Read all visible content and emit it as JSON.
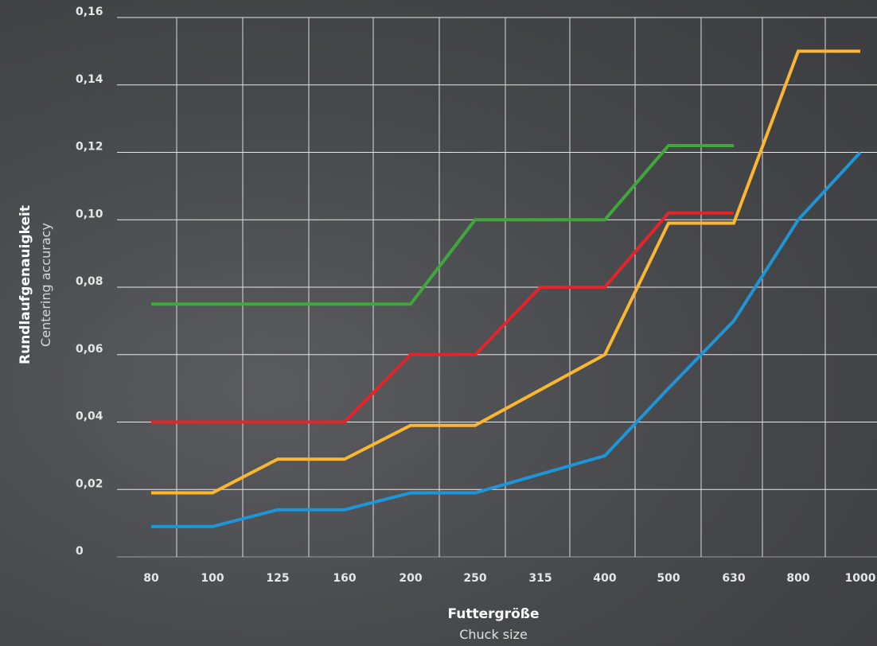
{
  "chart_data": {
    "type": "line",
    "categories": [
      "80",
      "100",
      "125",
      "160",
      "200",
      "250",
      "315",
      "400",
      "500",
      "630",
      "800",
      "1000"
    ],
    "y_tick_labels": [
      "0",
      "0,02",
      "0,04",
      "0,06",
      "0,08",
      "0,10",
      "0,12",
      "0,14",
      "0,16"
    ],
    "ylim": [
      0,
      0.16
    ],
    "xlabel": "Futtergröße",
    "xlabel_sub": "Chuck size",
    "ylabel": "Rundlaufgenauigkeit",
    "ylabel_sub": "Centering accuracy",
    "grid": true,
    "series": [
      {
        "color": "#3fa83a",
        "points": [
          [
            "80",
            0.075
          ],
          [
            "200",
            0.075
          ],
          [
            "250",
            0.1
          ],
          [
            "400",
            0.1
          ],
          [
            "500",
            0.122
          ],
          [
            "630",
            0.122
          ]
        ]
      },
      {
        "color": "#e4232b",
        "points": [
          [
            "80",
            0.04
          ],
          [
            "160",
            0.04
          ],
          [
            "200",
            0.06
          ],
          [
            "250",
            0.06
          ],
          [
            "315",
            0.08
          ],
          [
            "400",
            0.08
          ],
          [
            "500",
            0.102
          ],
          [
            "630",
            0.102
          ]
        ]
      },
      {
        "color": "#fbb632",
        "points": [
          [
            "80",
            0.019
          ],
          [
            "100",
            0.019
          ],
          [
            "125",
            0.029
          ],
          [
            "160",
            0.029
          ],
          [
            "200",
            0.039
          ],
          [
            "250",
            0.039
          ],
          [
            "400",
            0.06
          ],
          [
            "500",
            0.099
          ],
          [
            "630",
            0.099
          ],
          [
            "800",
            0.15
          ],
          [
            "1000",
            0.15
          ]
        ]
      },
      {
        "color": "#1e95d6",
        "points": [
          [
            "80",
            0.009
          ],
          [
            "100",
            0.009
          ],
          [
            "125",
            0.014
          ],
          [
            "160",
            0.014
          ],
          [
            "200",
            0.019
          ],
          [
            "250",
            0.019
          ],
          [
            "400",
            0.03
          ],
          [
            "500",
            0.05
          ],
          [
            "630",
            0.07
          ],
          [
            "800",
            0.1
          ],
          [
            "1000",
            0.12
          ]
        ]
      }
    ]
  }
}
